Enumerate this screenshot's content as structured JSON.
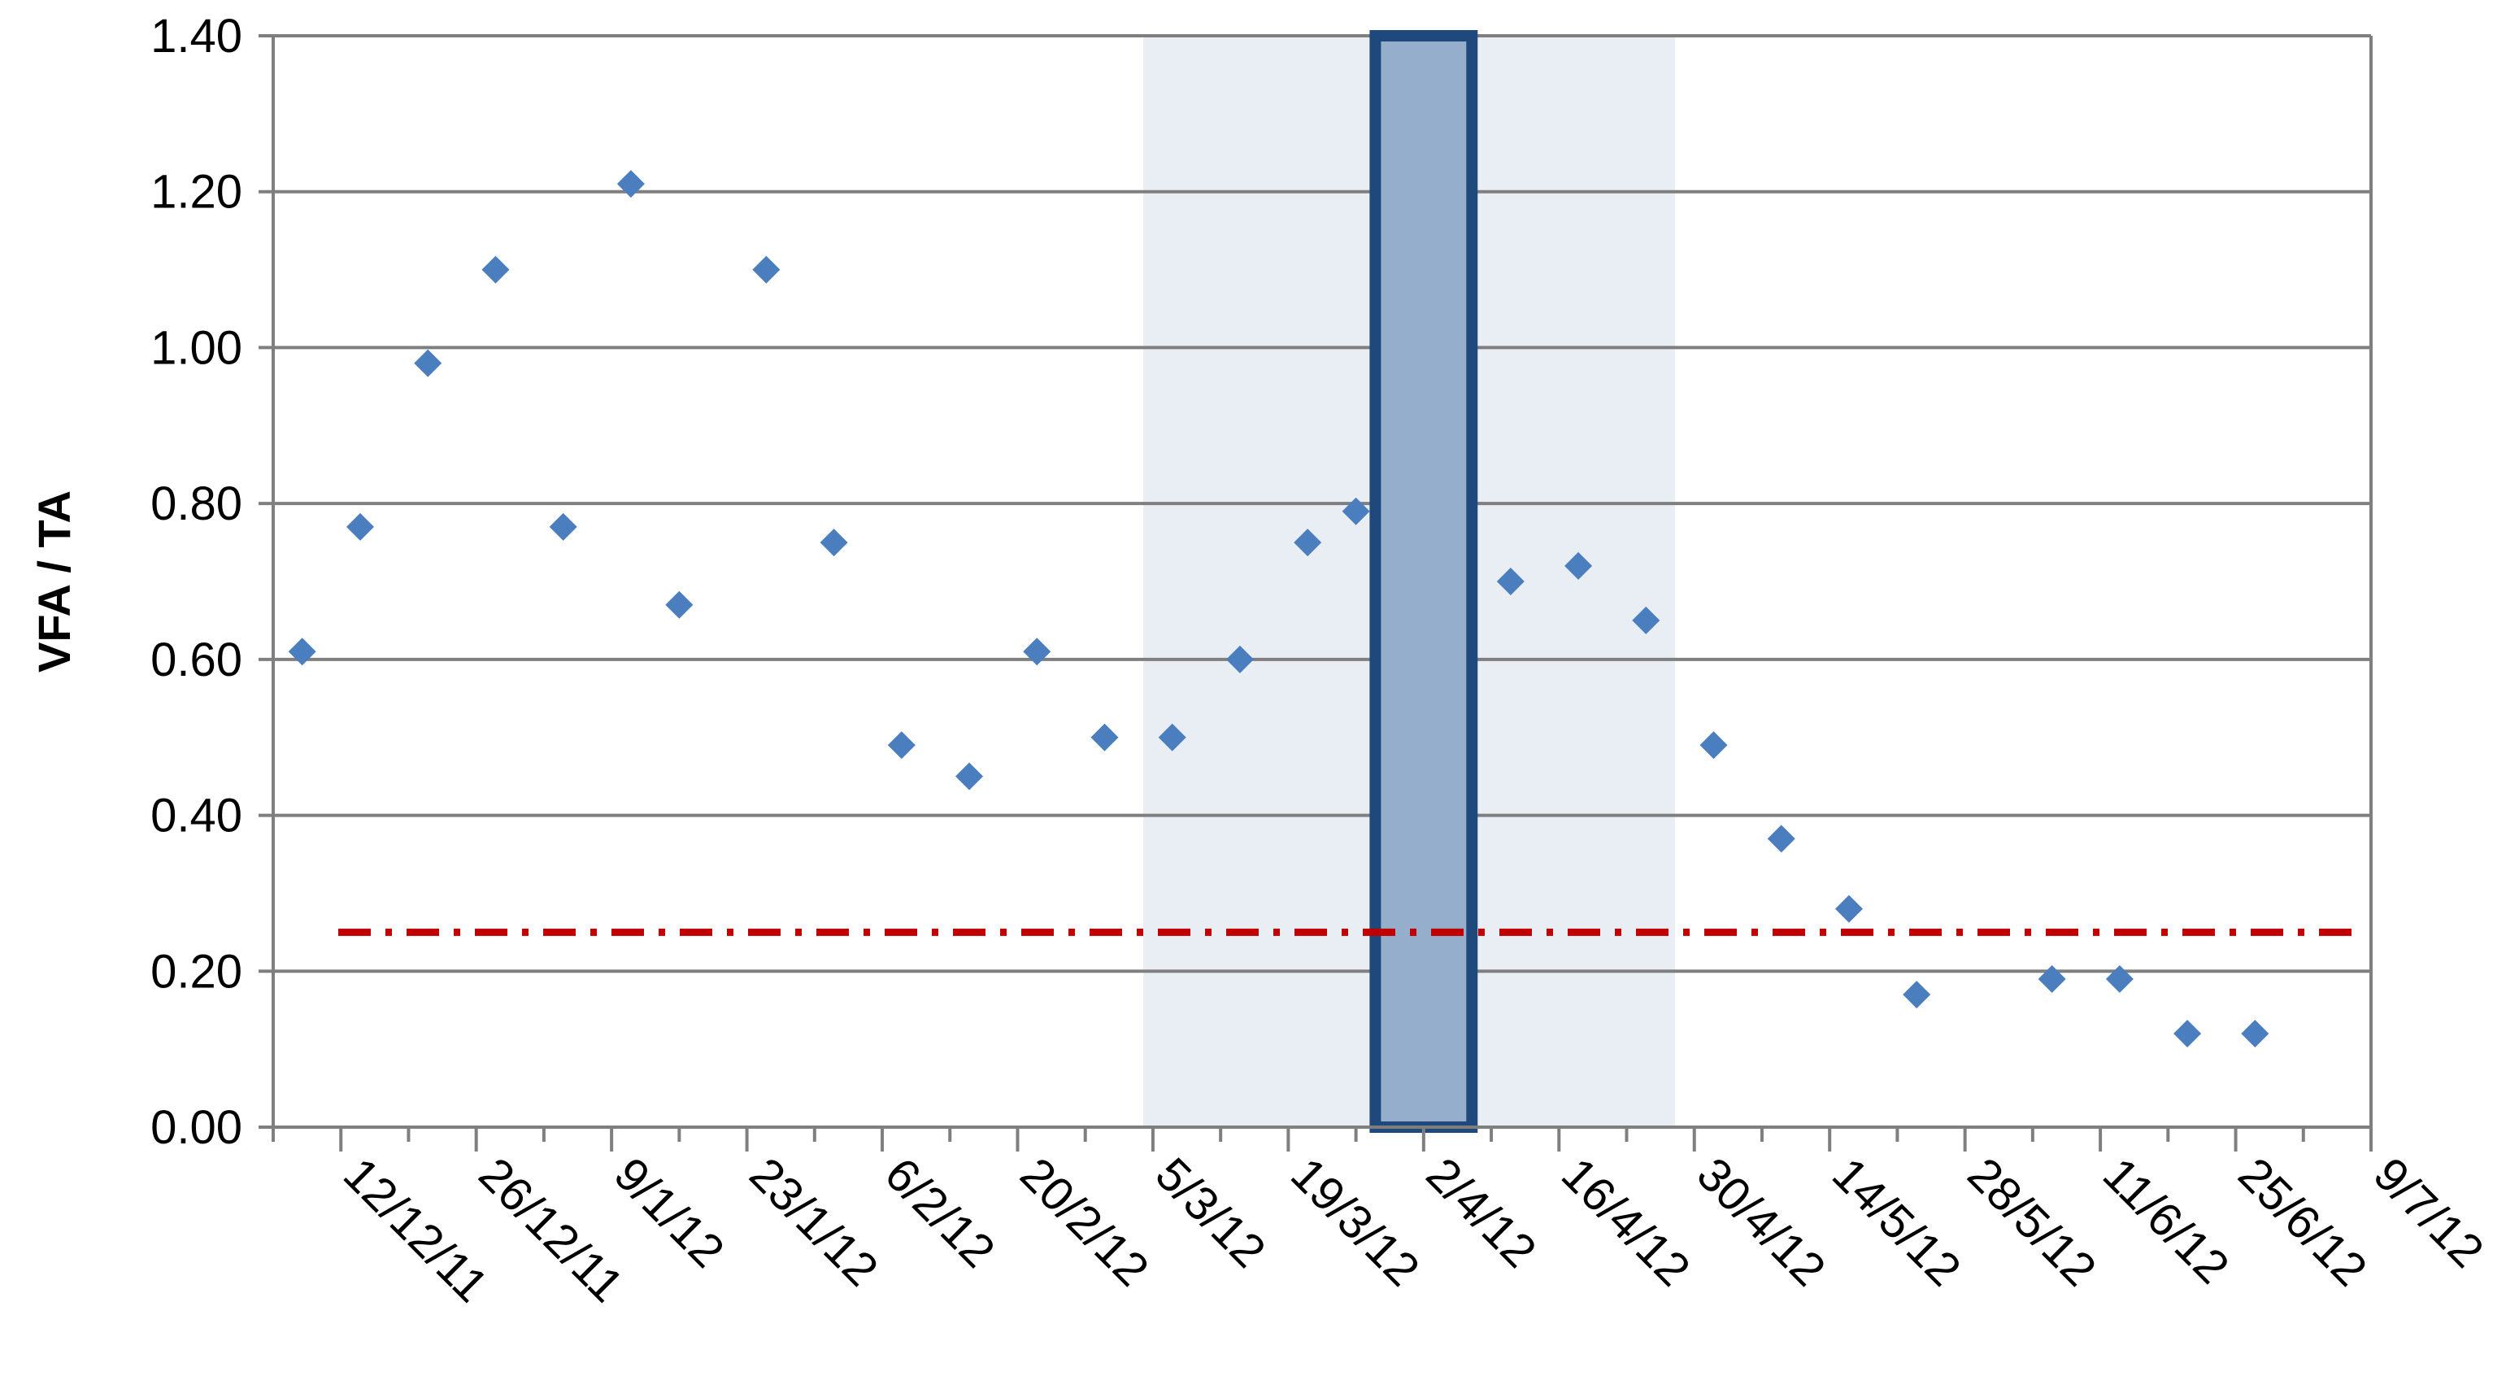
{
  "chart_data": {
    "type": "scatter",
    "title": "",
    "xlabel": "",
    "ylabel": "VFA / TA",
    "x_type": "date",
    "xlim": [
      "2011-12-05",
      "2012-07-09"
    ],
    "ylim": [
      0,
      1.4
    ],
    "y_ticks": [
      0,
      0.2,
      0.4,
      0.6,
      0.8,
      1.0,
      1.2,
      1.4
    ],
    "y_tick_labels": [
      "0.00",
      "0.20",
      "0.40",
      "0.60",
      "0.80",
      "1.00",
      "1.20",
      "1.40"
    ],
    "x_major_ticks": [
      "2011-12-12",
      "2011-12-26",
      "2012-01-09",
      "2012-01-23",
      "2012-02-06",
      "2012-02-20",
      "2012-03-05",
      "2012-03-19",
      "2012-04-02",
      "2012-04-16",
      "2012-04-30",
      "2012-05-14",
      "2012-05-28",
      "2012-06-11",
      "2012-06-25",
      "2012-07-09"
    ],
    "x_tick_labels": [
      "12/12/11",
      "26/12/11",
      "9/1/12",
      "23/1/12",
      "6/2/12",
      "20/2/12",
      "5/3/12",
      "19/3/12",
      "2/4/12",
      "16/4/12",
      "30/4/12",
      "14/5/12",
      "28/5/12",
      "11/6/12",
      "25/6/12",
      "9/7/12"
    ],
    "grid": "horizontal",
    "legend": "none",
    "series": [
      {
        "marker": "diamond",
        "color": "#4a7ebf",
        "points": [
          {
            "x": "2011-12-08",
            "y": 0.61
          },
          {
            "x": "2011-12-14",
            "y": 0.77
          },
          {
            "x": "2011-12-21",
            "y": 0.98
          },
          {
            "x": "2011-12-28",
            "y": 1.1
          },
          {
            "x": "2012-01-04",
            "y": 0.77
          },
          {
            "x": "2012-01-11",
            "y": 1.21
          },
          {
            "x": "2012-01-16",
            "y": 0.67
          },
          {
            "x": "2012-01-25",
            "y": 1.1
          },
          {
            "x": "2012-02-01",
            "y": 0.75
          },
          {
            "x": "2012-02-08",
            "y": 0.49
          },
          {
            "x": "2012-02-15",
            "y": 0.45
          },
          {
            "x": "2012-02-22",
            "y": 0.61
          },
          {
            "x": "2012-02-29",
            "y": 0.5
          },
          {
            "x": "2012-03-07",
            "y": 0.5
          },
          {
            "x": "2012-03-14",
            "y": 0.6
          },
          {
            "x": "2012-03-21",
            "y": 0.75
          },
          {
            "x": "2012-03-26",
            "y": 0.79
          },
          {
            "x": "2012-04-11",
            "y": 0.7
          },
          {
            "x": "2012-04-18",
            "y": 0.72
          },
          {
            "x": "2012-04-25",
            "y": 0.65
          },
          {
            "x": "2012-05-02",
            "y": 0.49
          },
          {
            "x": "2012-05-09",
            "y": 0.37
          },
          {
            "x": "2012-05-16",
            "y": 0.28
          },
          {
            "x": "2012-05-23",
            "y": 0.17
          },
          {
            "x": "2012-06-06",
            "y": 0.19
          },
          {
            "x": "2012-06-13",
            "y": 0.19
          },
          {
            "x": "2012-06-20",
            "y": 0.12
          },
          {
            "x": "2012-06-27",
            "y": 0.12
          }
        ]
      }
    ],
    "reference_line": {
      "y": 0.25,
      "style": "dash-dot",
      "color": "#c00000"
    },
    "shaded_period": {
      "start": "2012-03-04",
      "end": "2012-04-28",
      "color": "#e9eef5"
    },
    "highlight_period": {
      "start": "2012-03-28",
      "end": "2012-04-07",
      "fill": "#94aecb",
      "stroke": "#1f497d"
    }
  }
}
